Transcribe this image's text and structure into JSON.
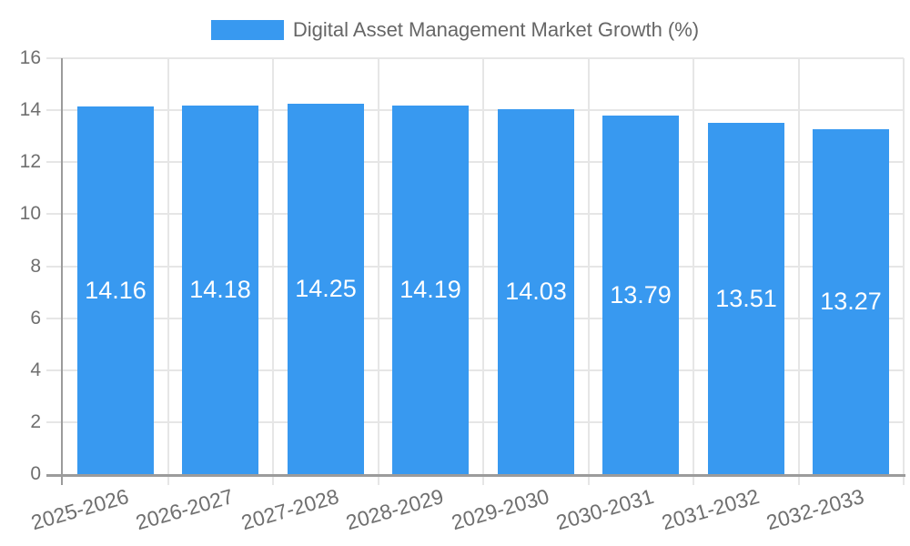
{
  "chart_data": {
    "type": "bar",
    "title": "",
    "legend": {
      "position": "top",
      "label": "Digital Asset Management Market Growth (%)"
    },
    "categories": [
      "2025-2026",
      "2026-2027",
      "2027-2028",
      "2028-2029",
      "2029-2030",
      "2030-2031",
      "2031-2032",
      "2032-2033"
    ],
    "series": [
      {
        "name": "Digital Asset Management Market Growth (%)",
        "values": [
          14.16,
          14.18,
          14.25,
          14.19,
          14.03,
          13.79,
          13.51,
          13.27
        ]
      }
    ],
    "value_labels": [
      "14.16",
      "14.18",
      "14.25",
      "14.19",
      "14.03",
      "13.79",
      "13.51",
      "13.27"
    ],
    "xlabel": "",
    "ylabel": "",
    "ylim": [
      0,
      16
    ],
    "yticks": [
      0,
      2,
      4,
      6,
      8,
      10,
      12,
      14,
      16
    ],
    "grid": true,
    "colors": {
      "bar": "#3899f0",
      "grid": "#e6e6e6",
      "axis": "#9b9b9b",
      "tick_text": "#6f6f6f",
      "legend_text": "#666666",
      "value_text": "#ffffff",
      "background": "#ffffff"
    }
  }
}
